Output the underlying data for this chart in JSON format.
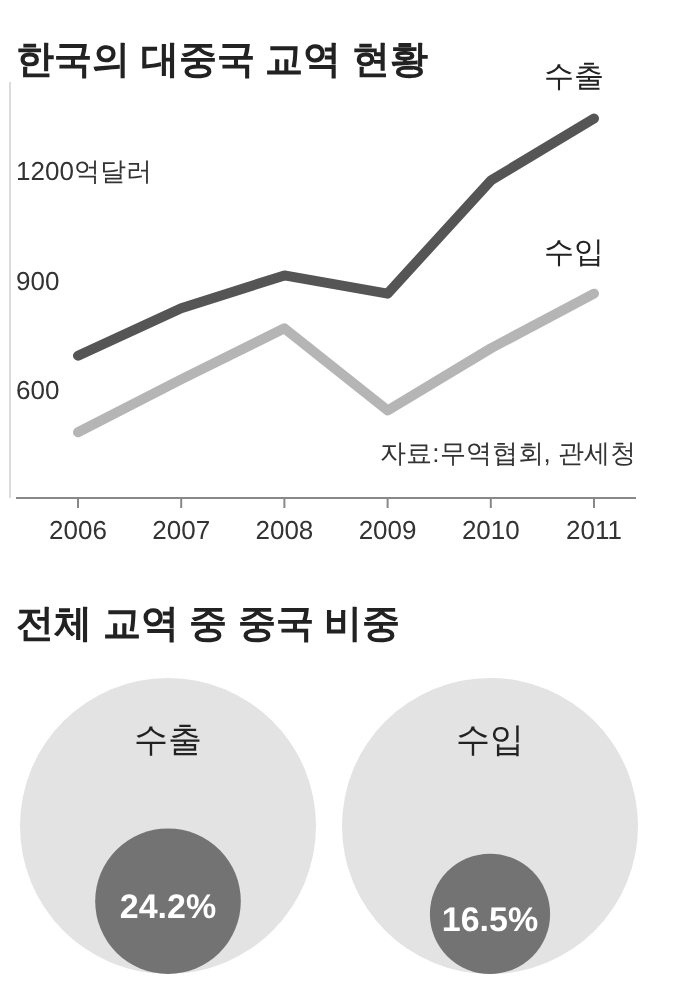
{
  "chart_data": [
    {
      "type": "line",
      "title": "한국의 대중국 교역 현황",
      "categories": [
        "2006",
        "2007",
        "2008",
        "2009",
        "2010",
        "2011"
      ],
      "series": [
        {
          "name": "수출",
          "color": "#555555",
          "values": [
            700,
            830,
            920,
            870,
            1180,
            1350
          ]
        },
        {
          "name": "수입",
          "color": "#b5b5b5",
          "values": [
            490,
            635,
            775,
            550,
            720,
            870
          ]
        }
      ],
      "ylim": [
        310,
        1450
      ],
      "yticks": [
        600,
        900,
        {
          "value": 1200,
          "label": "1200억달러"
        }
      ],
      "annotations": [
        "자료:무역협회, 관세청"
      ],
      "grid": false,
      "legend": false
    },
    {
      "type": "other",
      "title": "전체 교역 중 중국 비중",
      "categories": [
        "수출",
        "수입"
      ],
      "colors": [
        "#e3e3e3",
        "#e3e3e3"
      ],
      "series": [
        {
          "color": "#737373",
          "values": [
            24.2,
            16.5
          ],
          "value_labels": [
            "24.2%",
            "16.5%"
          ]
        }
      ]
    }
  ]
}
